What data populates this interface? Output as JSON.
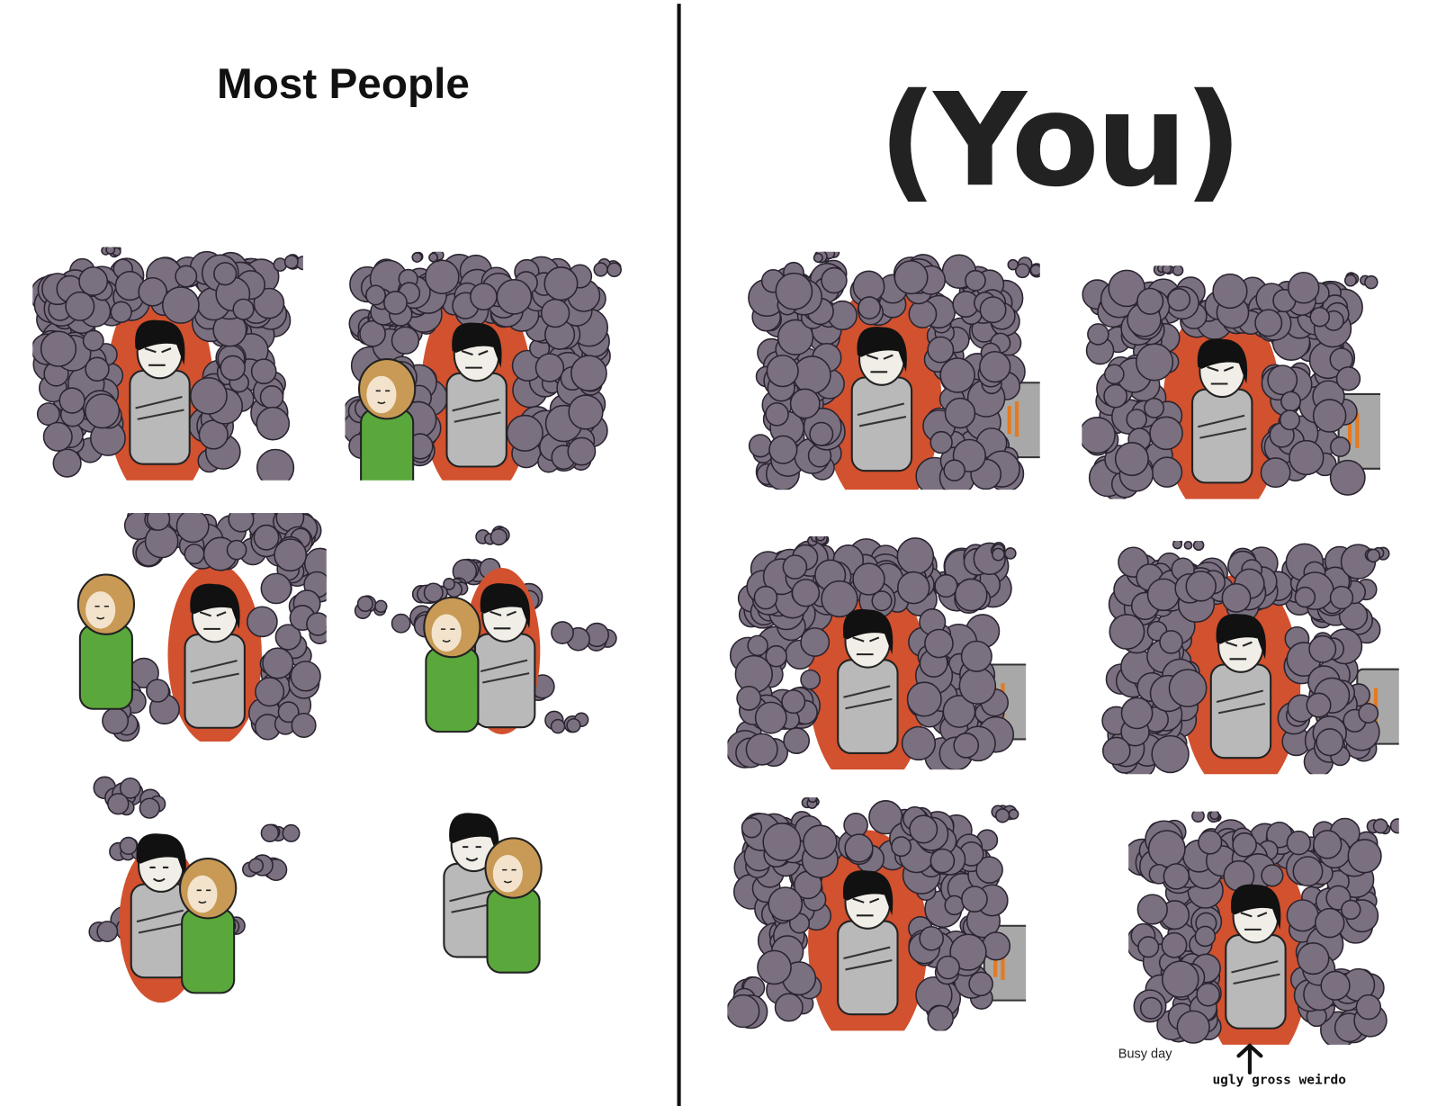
{
  "left_column": {
    "title": "Most People"
  },
  "right_column": {
    "title": "(You)"
  },
  "captions": {
    "busy_day": "Busy day",
    "ugly_gross_weirdo": "ugly gross weirdo"
  },
  "colors": {
    "cloud": "#7b7080",
    "doorway": "#d2512e",
    "shirt": "#b9b9b9",
    "hair": "#111111",
    "girl_shirt": "#5aa83c",
    "girl_hair": "#c89a55",
    "oven": "#a8a8a8"
  }
}
